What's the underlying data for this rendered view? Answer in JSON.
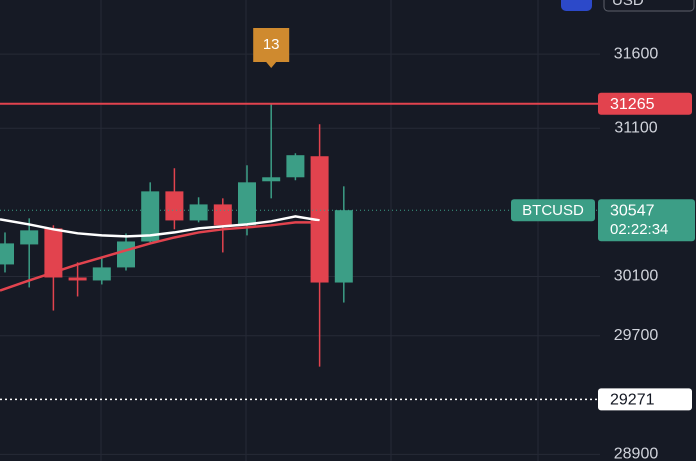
{
  "chart_data": {
    "type": "candlestick",
    "categories": [
      null,
      null,
      null,
      null,
      null,
      null,
      null,
      null,
      null,
      null,
      null,
      null,
      null,
      null,
      null
    ],
    "open": [
      30181,
      30316,
      30424,
      30093,
      30073,
      30161,
      30336,
      30674,
      30478,
      30586,
      30445,
      30742,
      30769,
      30911,
      30059
    ],
    "high": [
      30397,
      30492,
      30445,
      30195,
      30222,
      30390,
      30735,
      30830,
      30634,
      30627,
      30850,
      31265,
      30931,
      31127,
      30708
    ],
    "low": [
      30127,
      30026,
      29870,
      29965,
      30046,
      30140,
      30323,
      30418,
      30465,
      30262,
      30377,
      30627,
      30749,
      29492,
      29924
    ],
    "close": [
      30323,
      30411,
      30093,
      30073,
      30161,
      30336,
      30674,
      30478,
      30586,
      30445,
      30735,
      30769,
      30918,
      30059,
      30547
    ],
    "up_color": "#3c9e86",
    "down_color": "#e2434e",
    "lines": [
      {
        "color": "#ffffff",
        "values": [
          30485,
          30451,
          30418,
          30391,
          30377,
          30370,
          30377,
          30397,
          30424,
          30438,
          30451,
          30472,
          30505,
          30478,
          null
        ]
      },
      {
        "color": "#e2434e",
        "values": [
          30005,
          30073,
          30127,
          30181,
          30228,
          30276,
          30323,
          30363,
          30397,
          30418,
          30431,
          30445,
          30465,
          30465,
          null
        ]
      }
    ],
    "price_lines": [
      {
        "value": 31265,
        "color": "#e2434e",
        "style": "solid"
      },
      {
        "value": 29271,
        "color": "#ffffff",
        "style": "dotted"
      }
    ],
    "ylim": [
      28855,
      31965
    ],
    "yticks": [
      31600,
      31100,
      30100,
      29700,
      28900
    ],
    "grid": true,
    "badge": "13",
    "symbol": "BTCUSD",
    "countdown": "02:22:34",
    "currency": "USD"
  }
}
